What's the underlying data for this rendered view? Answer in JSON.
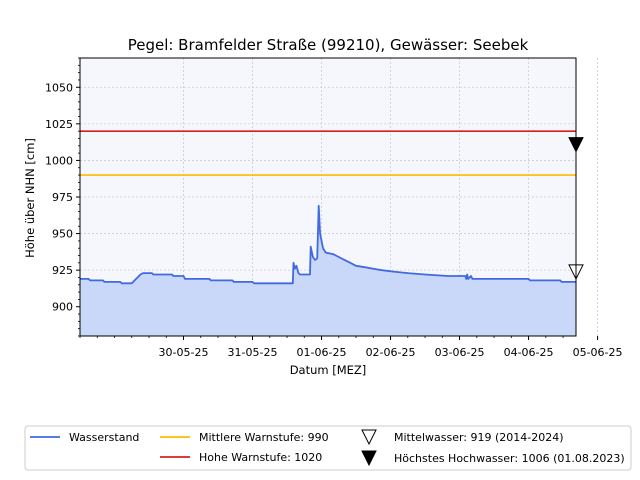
{
  "chart_data": {
    "type": "line",
    "title": "Pegel:  Bramfelder Straße (99210), Gewässer:  Seebek",
    "xlabel": "Datum [MEZ]",
    "ylabel": "Höhe über NHN [cm]",
    "xlim": [
      "2025-05-29T00:00",
      "2025-06-05T04:30"
    ],
    "ylim": [
      880,
      1070
    ],
    "x_ticks": [
      "30-05-25",
      "31-05-25",
      "01-06-25",
      "02-06-25",
      "03-06-25",
      "04-06-25",
      "05-06-25"
    ],
    "y_ticks": [
      900,
      925,
      950,
      975,
      1000,
      1025,
      1050
    ],
    "grid": true,
    "legend_position": "below",
    "series": [
      {
        "name": "Wasserstand",
        "color": "#4169e1",
        "fill_color": "#c9d7f8",
        "points": [
          [
            "2025-05-29T00:00",
            919
          ],
          [
            "2025-05-29T03:00",
            919
          ],
          [
            "2025-05-29T03:30",
            918
          ],
          [
            "2025-05-29T08:00",
            918
          ],
          [
            "2025-05-29T08:30",
            917
          ],
          [
            "2025-05-29T14:00",
            917
          ],
          [
            "2025-05-29T14:30",
            916
          ],
          [
            "2025-05-29T18:00",
            916
          ],
          [
            "2025-05-29T19:00",
            918
          ],
          [
            "2025-05-29T20:00",
            920
          ],
          [
            "2025-05-29T21:00",
            922
          ],
          [
            "2025-05-29T22:00",
            923
          ],
          [
            "2025-05-30T01:00",
            923
          ],
          [
            "2025-05-30T01:30",
            922
          ],
          [
            "2025-05-30T08:00",
            922
          ],
          [
            "2025-05-30T08:30",
            921
          ],
          [
            "2025-05-30T12:00",
            921
          ],
          [
            "2025-05-30T12:30",
            919
          ],
          [
            "2025-05-30T21:00",
            919
          ],
          [
            "2025-05-30T21:30",
            918
          ],
          [
            "2025-05-31T05:00",
            918
          ],
          [
            "2025-05-31T05:30",
            917
          ],
          [
            "2025-05-31T12:00",
            917
          ],
          [
            "2025-05-31T12:30",
            916
          ],
          [
            "2025-06-01T01:30",
            916
          ],
          [
            "2025-06-01T02:00",
            916
          ],
          [
            "2025-06-01T02:15",
            930
          ],
          [
            "2025-06-01T02:45",
            926
          ],
          [
            "2025-06-01T03:15",
            928
          ],
          [
            "2025-06-01T04:00",
            923
          ],
          [
            "2025-06-01T04:30",
            922
          ],
          [
            "2025-06-01T08:00",
            922
          ],
          [
            "2025-06-01T08:15",
            941
          ],
          [
            "2025-06-01T09:00",
            934
          ],
          [
            "2025-06-01T09:45",
            932
          ],
          [
            "2025-06-01T10:30",
            933
          ],
          [
            "2025-06-01T11:00",
            969
          ],
          [
            "2025-06-01T11:30",
            950
          ],
          [
            "2025-06-01T12:30",
            940
          ],
          [
            "2025-06-01T13:30",
            937
          ],
          [
            "2025-06-01T16:00",
            936
          ],
          [
            "2025-06-01T18:00",
            934
          ],
          [
            "2025-06-01T20:00",
            932
          ],
          [
            "2025-06-01T22:00",
            930
          ],
          [
            "2025-06-02T00:00",
            928
          ],
          [
            "2025-06-02T03:00",
            927
          ],
          [
            "2025-06-02T06:00",
            926
          ],
          [
            "2025-06-02T09:00",
            925
          ],
          [
            "2025-06-02T13:00",
            924
          ],
          [
            "2025-06-02T18:00",
            923
          ],
          [
            "2025-06-03T00:00",
            922
          ],
          [
            "2025-06-03T08:00",
            921
          ],
          [
            "2025-06-03T14:00",
            921
          ],
          [
            "2025-06-03T14:20",
            919
          ],
          [
            "2025-06-03T14:40",
            922
          ],
          [
            "2025-06-03T15:00",
            919
          ],
          [
            "2025-06-03T16:00",
            921
          ],
          [
            "2025-06-03T16:30",
            919
          ],
          [
            "2025-06-04T12:00",
            919
          ],
          [
            "2025-06-04T12:30",
            918
          ],
          [
            "2025-06-04T23:00",
            918
          ],
          [
            "2025-06-04T23:30",
            917
          ],
          [
            "2025-06-05T04:30",
            917
          ]
        ]
      },
      {
        "name": "Mittlere Warnstufe: 990",
        "type": "hline",
        "value": 990,
        "color": "#ffbb00"
      },
      {
        "name": "Hohe Warnstufe: 1020",
        "type": "hline",
        "value": 1020,
        "color": "#d62020"
      },
      {
        "name": "Mittelwasser: 919 (2014-2024)",
        "type": "marker",
        "marker": "triangle-down-open",
        "value": 919,
        "color": "#000000"
      },
      {
        "name": "Höchstes Hochwasser: 1006 (01.08.2023)",
        "type": "marker",
        "marker": "triangle-down-filled",
        "value": 1006,
        "color": "#000000"
      }
    ]
  },
  "colors": {
    "plot_background": "#f5f7fd",
    "grid": "#cccccc"
  }
}
